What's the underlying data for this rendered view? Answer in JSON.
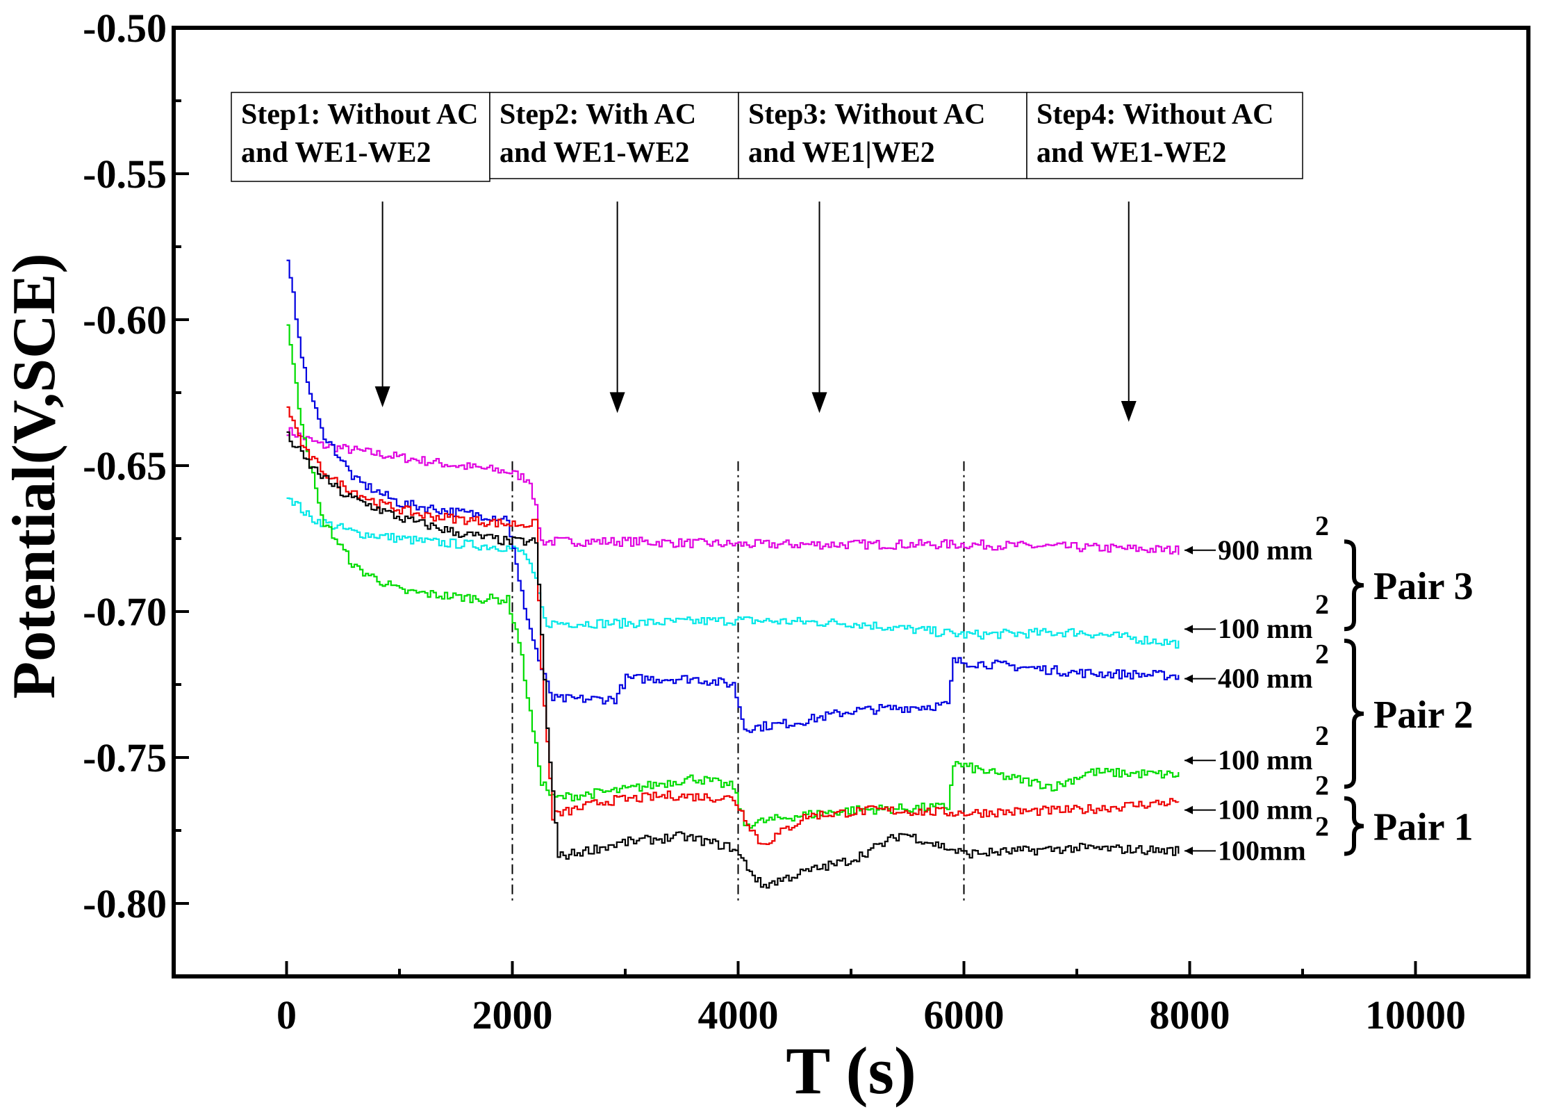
{
  "chart_data": {
    "type": "line",
    "title": "",
    "xlabel": "T (s)",
    "ylabel": "Potential(V,SCE)",
    "xlim": [
      -1000,
      11000
    ],
    "ylim": [
      -0.825,
      -0.5
    ],
    "xticks": [
      0,
      2000,
      4000,
      6000,
      8000,
      10000
    ],
    "xtick_labels": [
      "0",
      "2000",
      "4000",
      "6000",
      "8000",
      "10000"
    ],
    "yticks": [
      -0.5,
      -0.55,
      -0.6,
      -0.65,
      -0.7,
      -0.75,
      -0.8
    ],
    "ytick_labels": [
      "-0.50",
      "-0.55",
      "-0.60",
      "-0.65",
      "-0.70",
      "-0.75",
      "-0.80"
    ],
    "grid": false,
    "step_boundaries": [
      2000,
      4000,
      6000
    ],
    "steps": [
      {
        "line1": "Step1: Without AC",
        "line2": "and WE1-WE2",
        "arrow_x": 850,
        "arrow_to": -0.63
      },
      {
        "line1": "Step2: With AC",
        "line2": "and WE1-WE2",
        "arrow_x": 2930,
        "arrow_to": -0.632
      },
      {
        "line1": "Step3: Without AC",
        "line2": "and WE1|WE2",
        "arrow_x": 4720,
        "arrow_to": -0.632
      },
      {
        "line1": "Step4: Without AC",
        "line2": "and WE1-WE2",
        "arrow_x": 7460,
        "arrow_to": -0.635
      }
    ],
    "series": [
      {
        "name": "900 mm2",
        "color": "#e000e0",
        "label": "900 mm",
        "label_y": -0.679,
        "points": [
          [
            0,
            -0.638
          ],
          [
            300,
            -0.643
          ],
          [
            800,
            -0.646
          ],
          [
            1500,
            -0.65
          ],
          [
            1950,
            -0.652
          ],
          [
            2150,
            -0.655
          ],
          [
            2200,
            -0.665
          ],
          [
            2250,
            -0.676
          ],
          [
            3000,
            -0.676
          ],
          [
            4000,
            -0.677
          ],
          [
            5000,
            -0.677
          ],
          [
            6000,
            -0.677
          ],
          [
            7000,
            -0.678
          ],
          [
            7900,
            -0.679
          ]
        ]
      },
      {
        "name": "100 mm2 (Pair 3)",
        "color": "#00e8e8",
        "label": "100 mm",
        "label_y": -0.706,
        "points": [
          [
            0,
            -0.66
          ],
          [
            200,
            -0.668
          ],
          [
            600,
            -0.673
          ],
          [
            1200,
            -0.676
          ],
          [
            1950,
            -0.678
          ],
          [
            2100,
            -0.68
          ],
          [
            2200,
            -0.69
          ],
          [
            2280,
            -0.704
          ],
          [
            3000,
            -0.704
          ],
          [
            4000,
            -0.703
          ],
          [
            5000,
            -0.704
          ],
          [
            6000,
            -0.708
          ],
          [
            7000,
            -0.707
          ],
          [
            7900,
            -0.711
          ]
        ]
      },
      {
        "name": "400 mm2",
        "color": "#0000e0",
        "label": "400 mm",
        "label_y": -0.723,
        "points": [
          [
            0,
            -0.581
          ],
          [
            50,
            -0.592
          ],
          [
            150,
            -0.618
          ],
          [
            300,
            -0.638
          ],
          [
            600,
            -0.655
          ],
          [
            1000,
            -0.663
          ],
          [
            1500,
            -0.666
          ],
          [
            1950,
            -0.668
          ],
          [
            2050,
            -0.69
          ],
          [
            2150,
            -0.706
          ],
          [
            2250,
            -0.72
          ],
          [
            2350,
            -0.73
          ],
          [
            2900,
            -0.73
          ],
          [
            3000,
            -0.723
          ],
          [
            3600,
            -0.723
          ],
          [
            3950,
            -0.725
          ],
          [
            4050,
            -0.74
          ],
          [
            4500,
            -0.738
          ],
          [
            5000,
            -0.734
          ],
          [
            5850,
            -0.732
          ],
          [
            5900,
            -0.717
          ],
          [
            6500,
            -0.719
          ],
          [
            7000,
            -0.721
          ],
          [
            7900,
            -0.722
          ]
        ]
      },
      {
        "name": "100 mm2 (Pair 2)",
        "color": "#00dc00",
        "label": "100 mm",
        "label_y": -0.751,
        "points": [
          [
            0,
            -0.601
          ],
          [
            100,
            -0.63
          ],
          [
            300,
            -0.668
          ],
          [
            600,
            -0.685
          ],
          [
            1000,
            -0.693
          ],
          [
            1500,
            -0.695
          ],
          [
            1950,
            -0.696
          ],
          [
            2050,
            -0.71
          ],
          [
            2150,
            -0.735
          ],
          [
            2250,
            -0.758
          ],
          [
            2350,
            -0.764
          ],
          [
            3000,
            -0.761
          ],
          [
            3600,
            -0.757
          ],
          [
            3950,
            -0.76
          ],
          [
            4050,
            -0.773
          ],
          [
            4500,
            -0.77
          ],
          [
            5000,
            -0.768
          ],
          [
            5850,
            -0.767
          ],
          [
            5900,
            -0.752
          ],
          [
            6400,
            -0.757
          ],
          [
            6800,
            -0.76
          ],
          [
            7100,
            -0.755
          ],
          [
            7900,
            -0.756
          ]
        ]
      },
      {
        "name": "100 mm2 (Pair 1, red)",
        "color": "#ee0000",
        "label": "100 mm",
        "label_y": -0.768,
        "points": [
          [
            0,
            -0.63
          ],
          [
            150,
            -0.645
          ],
          [
            400,
            -0.655
          ],
          [
            800,
            -0.663
          ],
          [
            1200,
            -0.667
          ],
          [
            1950,
            -0.67
          ],
          [
            2200,
            -0.67
          ],
          [
            2250,
            -0.72
          ],
          [
            2350,
            -0.77
          ],
          [
            2800,
            -0.765
          ],
          [
            3400,
            -0.763
          ],
          [
            3950,
            -0.764
          ],
          [
            4200,
            -0.78
          ],
          [
            4600,
            -0.77
          ],
          [
            5200,
            -0.768
          ],
          [
            6000,
            -0.769
          ],
          [
            7000,
            -0.768
          ],
          [
            7900,
            -0.765
          ]
        ]
      },
      {
        "name": "100 mm2 (Pair 1, black)",
        "color": "#000000",
        "label": "100mm",
        "label_y": -0.782,
        "points": [
          [
            0,
            -0.64
          ],
          [
            200,
            -0.65
          ],
          [
            500,
            -0.66
          ],
          [
            1000,
            -0.668
          ],
          [
            1500,
            -0.673
          ],
          [
            1950,
            -0.676
          ],
          [
            2200,
            -0.676
          ],
          [
            2300,
            -0.74
          ],
          [
            2400,
            -0.784
          ],
          [
            3000,
            -0.779
          ],
          [
            3500,
            -0.777
          ],
          [
            3950,
            -0.781
          ],
          [
            4200,
            -0.794
          ],
          [
            4600,
            -0.789
          ],
          [
            5000,
            -0.785
          ],
          [
            5450,
            -0.776
          ],
          [
            6000,
            -0.783
          ],
          [
            7000,
            -0.781
          ],
          [
            7900,
            -0.782
          ]
        ]
      }
    ],
    "sup": "2",
    "pairs": [
      {
        "label": "Pair 3",
        "from": -0.676,
        "to": -0.706
      },
      {
        "label": "Pair 2",
        "from": -0.71,
        "to": -0.76
      },
      {
        "label": "Pair 1",
        "from": -0.764,
        "to": -0.783
      }
    ]
  }
}
